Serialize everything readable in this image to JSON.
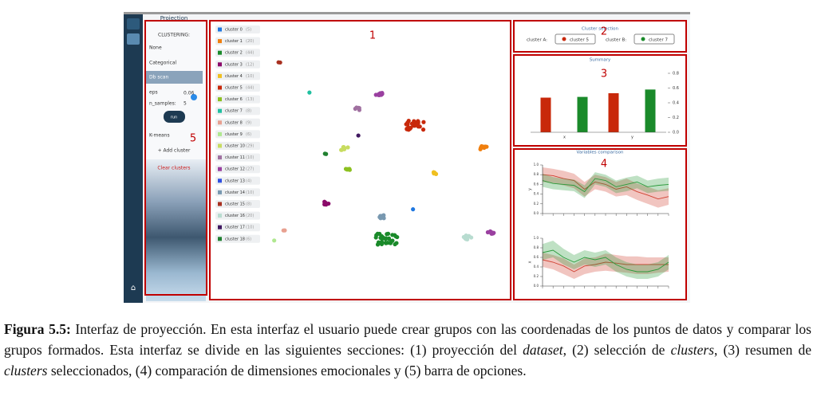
{
  "sidebar": {
    "title": "Projection",
    "clustering_label": "CLUSTERING:",
    "options": [
      "None",
      "Categorical",
      "Db scan"
    ],
    "eps_label": "eps",
    "eps_value": "0.06",
    "n_samples_label": "n_samples:",
    "n_samples_value": "5",
    "run": "run",
    "kmeans": "K-means",
    "add_cluster": "+ Add cluster",
    "clear_clusters": "Clear clusters"
  },
  "section_numbers": [
    "1",
    "2",
    "3",
    "4",
    "5"
  ],
  "clusters": [
    {
      "label": "cluster 0",
      "count": "(5)",
      "color": "#1f77e0"
    },
    {
      "label": "cluster 1",
      "count": "(20)",
      "color": "#f07f0e"
    },
    {
      "label": "cluster 2",
      "count": "(44)",
      "color": "#1a8a2a"
    },
    {
      "label": "cluster 3",
      "count": "(12)",
      "color": "#8b0a6a"
    },
    {
      "label": "cluster 4",
      "count": "(10)",
      "color": "#f0c020"
    },
    {
      "label": "cluster 5",
      "count": "(44)",
      "color": "#c8280a"
    },
    {
      "label": "cluster 6",
      "count": "(13)",
      "color": "#8cc020"
    },
    {
      "label": "cluster 7",
      "count": "(8)",
      "color": "#20c0a0"
    },
    {
      "label": "cluster 8",
      "count": "(9)",
      "color": "#e8a090"
    },
    {
      "label": "cluster 9",
      "count": "(6)",
      "color": "#b0e890"
    },
    {
      "label": "cluster 10",
      "count": "(29)",
      "color": "#c8dc60"
    },
    {
      "label": "cluster 11",
      "count": "(10)",
      "color": "#a070a0"
    },
    {
      "label": "cluster 12",
      "count": "(27)",
      "color": "#9a40a0"
    },
    {
      "label": "cluster 13",
      "count": "(4)",
      "color": "#3050e0"
    },
    {
      "label": "cluster 14",
      "count": "(10)",
      "color": "#7898b0"
    },
    {
      "label": "cluster 15",
      "count": "(8)",
      "color": "#a83020"
    },
    {
      "label": "cluster 16",
      "count": "(20)",
      "color": "#b8dcd0"
    },
    {
      "label": "cluster 17",
      "count": "(10)",
      "color": "#401860"
    },
    {
      "label": "cluster 18",
      "count": "(6)",
      "color": "#208030"
    }
  ],
  "cluster_selection": {
    "title": "Cluster selection",
    "a_label": "cluster A:",
    "a_value": "cluster 5",
    "a_color": "#c8280a",
    "b_label": "cluster B:",
    "b_value": "cluster 7",
    "b_color": "#1a8a2a"
  },
  "chart_data": [
    {
      "type": "bar",
      "title": "Summary",
      "categories": [
        "x",
        "y"
      ],
      "series": [
        {
          "color": "#c8280a",
          "values": [
            0.47,
            0.53
          ]
        },
        {
          "color": "#1a8a2a",
          "values": [
            0.48,
            0.58
          ]
        }
      ],
      "ylim": [
        0,
        0.8
      ],
      "yticks": [
        {
          "value": 0,
          "label": "0.0"
        },
        0.2,
        0.4,
        0.6,
        0.8
      ]
    },
    {
      "type": "line",
      "title": "Variables comparison",
      "ylabel": "y",
      "categories": [
        null,
        null,
        null,
        null,
        null,
        null,
        null,
        null,
        null,
        null,
        null,
        null,
        null
      ],
      "ylim": [
        0,
        1
      ],
      "yticks": [
        {
          "value": 0,
          "label": "0.0"
        },
        0.2,
        0.4,
        0.6,
        0.8,
        {
          "value": 1,
          "label": "1.0"
        }
      ],
      "series": [
        {
          "color": "#d04030",
          "values": [
            0.8,
            0.78,
            0.72,
            0.68,
            0.5,
            0.65,
            0.6,
            0.5,
            0.55,
            0.45,
            0.38,
            0.3,
            0.35
          ],
          "lower": [
            0.65,
            0.62,
            0.58,
            0.52,
            0.35,
            0.5,
            0.45,
            0.35,
            0.38,
            0.28,
            0.2,
            0.12,
            0.18
          ],
          "upper": [
            0.95,
            0.92,
            0.88,
            0.82,
            0.65,
            0.8,
            0.75,
            0.65,
            0.72,
            0.62,
            0.55,
            0.48,
            0.52
          ]
        },
        {
          "color": "#2a9a3a",
          "values": [
            0.68,
            0.62,
            0.6,
            0.58,
            0.45,
            0.72,
            0.68,
            0.55,
            0.6,
            0.65,
            0.55,
            0.58,
            0.6
          ],
          "lower": [
            0.55,
            0.5,
            0.48,
            0.46,
            0.32,
            0.6,
            0.55,
            0.42,
            0.46,
            0.52,
            0.42,
            0.45,
            0.47
          ],
          "upper": [
            0.82,
            0.75,
            0.72,
            0.7,
            0.58,
            0.85,
            0.8,
            0.68,
            0.74,
            0.78,
            0.68,
            0.72,
            0.74
          ]
        }
      ]
    },
    {
      "type": "line",
      "ylabel": "x",
      "categories": [
        null,
        null,
        null,
        null,
        null,
        null,
        null,
        null,
        null,
        null,
        null,
        null,
        null
      ],
      "ylim": [
        0,
        1
      ],
      "yticks": [
        {
          "value": 0,
          "label": "0.0"
        },
        0.2,
        0.4,
        0.6,
        0.8,
        {
          "value": 1,
          "label": "1.0"
        }
      ],
      "series": [
        {
          "color": "#d04030",
          "values": [
            0.55,
            0.5,
            0.42,
            0.3,
            0.42,
            0.45,
            0.5,
            0.48,
            0.45,
            0.45,
            0.45,
            0.45,
            0.45
          ],
          "lower": [
            0.4,
            0.35,
            0.25,
            0.15,
            0.25,
            0.3,
            0.32,
            0.3,
            0.28,
            0.25,
            0.25,
            0.28,
            0.3
          ],
          "upper": [
            0.7,
            0.65,
            0.58,
            0.45,
            0.58,
            0.6,
            0.68,
            0.65,
            0.62,
            0.62,
            0.6,
            0.6,
            0.6
          ]
        },
        {
          "color": "#2a9a3a",
          "values": [
            0.7,
            0.75,
            0.6,
            0.5,
            0.6,
            0.55,
            0.6,
            0.45,
            0.35,
            0.3,
            0.3,
            0.35,
            0.5
          ],
          "lower": [
            0.55,
            0.6,
            0.45,
            0.35,
            0.45,
            0.4,
            0.45,
            0.3,
            0.2,
            0.15,
            0.15,
            0.2,
            0.35
          ],
          "upper": [
            0.88,
            0.95,
            0.78,
            0.65,
            0.75,
            0.7,
            0.75,
            0.6,
            0.5,
            0.45,
            0.45,
            0.5,
            0.65
          ]
        }
      ]
    }
  ],
  "caption": {
    "label": "Figura 5.5:",
    "parts": [
      " Interfaz de proyección. En esta interfaz el usuario puede crear grupos con las coordenadas de los puntos de datos y comparar los grupos formados. Esta interfaz se divide en las siguientes secciones: (1) proyección del ",
      "dataset",
      ", (2) selección de ",
      "clusters",
      ", (3) resumen de ",
      "clusters",
      " seleccionados, (4) comparación de dimensiones emocionales y (5) barra de opciones."
    ]
  }
}
